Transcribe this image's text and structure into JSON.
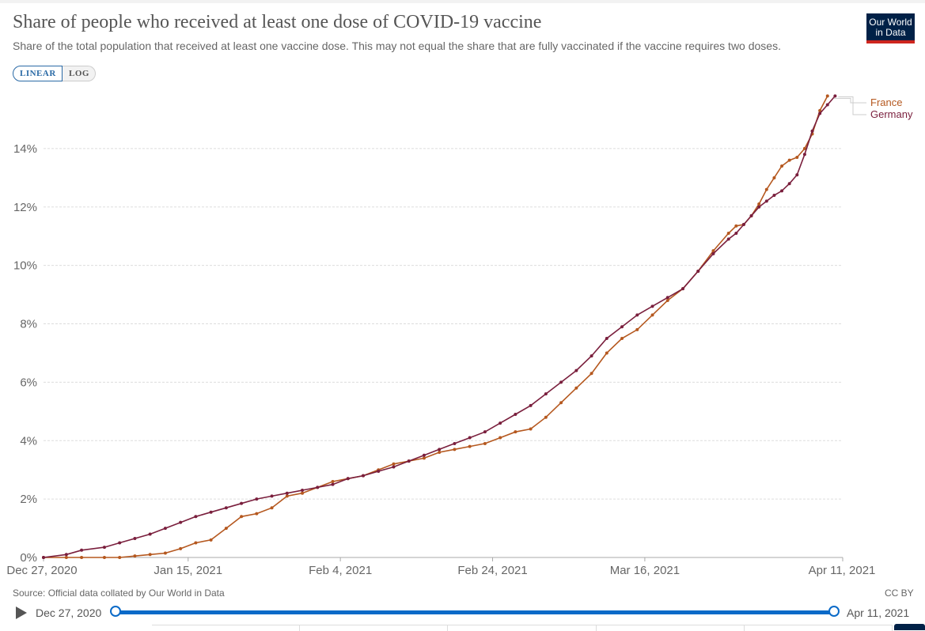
{
  "header": {
    "title": "Share of people who received at least one dose of COVID-19 vaccine",
    "subtitle": "Share of the total population that received at least one vaccine dose. This may not equal the share that are fully vaccinated if the vaccine requires two doses.",
    "logo_line1": "Our World",
    "logo_line2": "in Data"
  },
  "controls": {
    "linear_label": "LINEAR",
    "log_label": "LOG",
    "active_scale": "linear"
  },
  "footer": {
    "source": "Source: Official data collated by Our World in Data",
    "license": "CC BY"
  },
  "timeline": {
    "start_label": "Dec 27, 2020",
    "end_label": "Apr 11, 2021",
    "start_position": 0,
    "end_position": 1
  },
  "colors": {
    "france": "#b5581f",
    "germany": "#7a1f3d",
    "grid": "#dddddd",
    "accent": "#0a6ac8"
  },
  "chart_data": {
    "type": "line",
    "title": "Share of people who received at least one dose of COVID-19 vaccine",
    "xlabel": "",
    "ylabel": "",
    "x_start": "Dec 27, 2020",
    "x_end": "Apr 11, 2021",
    "x_unit": "days since Dec 27, 2020",
    "xlim": [
      0,
      105
    ],
    "ylim": [
      0,
      16
    ],
    "y_ticks": [
      0,
      2,
      4,
      6,
      8,
      10,
      12,
      14
    ],
    "y_tick_labels": [
      "0%",
      "2%",
      "4%",
      "6%",
      "8%",
      "10%",
      "12%",
      "14%"
    ],
    "x_ticks": [
      0,
      19,
      39,
      59,
      79,
      105
    ],
    "x_tick_labels": [
      "Dec 27, 2020",
      "Jan 15, 2021",
      "Feb 4, 2021",
      "Feb 24, 2021",
      "Mar 16, 2021",
      "Apr 11, 2021"
    ],
    "grid": true,
    "legend": "right, line-end labels",
    "series": [
      {
        "name": "France",
        "x": [
          0,
          3,
          5,
          8,
          10,
          12,
          14,
          16,
          18,
          20,
          22,
          24,
          26,
          28,
          30,
          32,
          34,
          36,
          38,
          40,
          42,
          44,
          46,
          48,
          50,
          52,
          54,
          56,
          58,
          60,
          62,
          64,
          66,
          68,
          70,
          72,
          74,
          76,
          78,
          80,
          82,
          84,
          86,
          88,
          90,
          91,
          92,
          93,
          94,
          95,
          96,
          97,
          98,
          99,
          100,
          101,
          102,
          103
        ],
        "y": [
          0,
          0,
          0,
          0,
          0,
          0.05,
          0.1,
          0.15,
          0.3,
          0.5,
          0.6,
          1.0,
          1.4,
          1.5,
          1.7,
          2.1,
          2.2,
          2.4,
          2.6,
          2.7,
          2.8,
          3.0,
          3.2,
          3.3,
          3.4,
          3.6,
          3.7,
          3.8,
          3.9,
          4.1,
          4.3,
          4.4,
          4.8,
          5.3,
          5.8,
          6.3,
          7.0,
          7.5,
          7.8,
          8.3,
          8.8,
          9.2,
          9.8,
          10.5,
          11.1,
          11.35,
          11.4,
          11.7,
          12.1,
          12.6,
          13.0,
          13.4,
          13.6,
          13.7,
          14.0,
          14.5,
          15.3,
          15.8
        ]
      },
      {
        "name": "Germany",
        "x": [
          0,
          3,
          5,
          8,
          10,
          12,
          14,
          16,
          18,
          20,
          22,
          24,
          26,
          28,
          30,
          32,
          34,
          36,
          38,
          40,
          42,
          44,
          46,
          48,
          50,
          52,
          54,
          56,
          58,
          60,
          62,
          64,
          66,
          68,
          70,
          72,
          74,
          76,
          78,
          80,
          82,
          84,
          86,
          88,
          90,
          91,
          92,
          93,
          94,
          95,
          96,
          97,
          98,
          99,
          100,
          101,
          102,
          103,
          104
        ],
        "y": [
          0,
          0.1,
          0.25,
          0.35,
          0.5,
          0.65,
          0.8,
          1.0,
          1.2,
          1.4,
          1.55,
          1.7,
          1.85,
          2.0,
          2.1,
          2.2,
          2.3,
          2.4,
          2.5,
          2.7,
          2.8,
          2.95,
          3.1,
          3.3,
          3.5,
          3.7,
          3.9,
          4.1,
          4.3,
          4.6,
          4.9,
          5.2,
          5.6,
          6.0,
          6.4,
          6.9,
          7.5,
          7.9,
          8.3,
          8.6,
          8.9,
          9.2,
          9.8,
          10.4,
          10.9,
          11.1,
          11.4,
          11.7,
          12.0,
          12.2,
          12.4,
          12.55,
          12.8,
          13.1,
          13.8,
          14.6,
          15.2,
          15.5,
          15.8
        ]
      }
    ]
  }
}
